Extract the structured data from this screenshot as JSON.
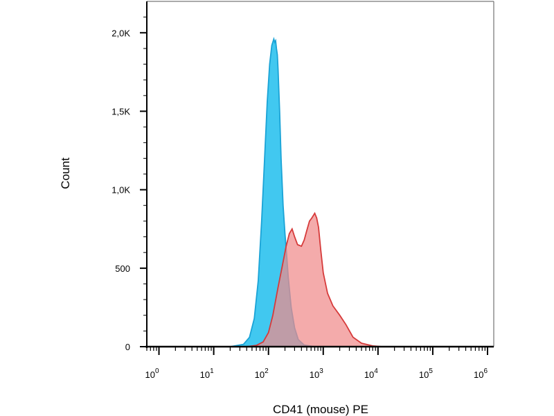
{
  "chart_data": {
    "type": "area",
    "title": "",
    "xlabel": "CD41 (mouse) PE",
    "ylabel": "Count",
    "x_scale": "log",
    "xlim": [
      0.6,
      1300000
    ],
    "ylim": [
      0,
      2200
    ],
    "grid": false,
    "legend": "none",
    "y_ticks": [
      {
        "value": 0,
        "label": "0"
      },
      {
        "value": 500,
        "label": "500"
      },
      {
        "value": 1000,
        "label": "1,0K"
      },
      {
        "value": 1500,
        "label": "1,5K"
      },
      {
        "value": 2000,
        "label": "2,0K"
      }
    ],
    "x_ticks": [
      {
        "value": 1,
        "base": "10",
        "exp": "0"
      },
      {
        "value": 10,
        "base": "10",
        "exp": "1"
      },
      {
        "value": 100,
        "base": "10",
        "exp": "2"
      },
      {
        "value": 1000,
        "base": "10",
        "exp": "3"
      },
      {
        "value": 10000,
        "base": "10",
        "exp": "4"
      },
      {
        "value": 100000,
        "base": "10",
        "exp": "5"
      },
      {
        "value": 1000000,
        "base": "10",
        "exp": "6"
      }
    ],
    "series": [
      {
        "fill": "#41c8f0",
        "stroke": "#1aa3d6",
        "x": [
          1,
          20,
          35,
          45,
          55,
          65,
          75,
          85,
          95,
          105,
          115,
          125,
          130,
          135,
          140,
          145,
          150,
          160,
          170,
          185,
          200,
          215,
          230,
          260,
          300,
          350,
          450,
          700,
          1000000
        ],
        "y": [
          0,
          0,
          15,
          60,
          180,
          420,
          800,
          1200,
          1560,
          1800,
          1920,
          1960,
          1940,
          1950,
          1900,
          1860,
          1760,
          1500,
          1200,
          900,
          720,
          580,
          440,
          250,
          120,
          45,
          10,
          0,
          0
        ]
      },
      {
        "fill": "#f08a8a",
        "stroke": "#d63a3a",
        "x": [
          1,
          40,
          60,
          80,
          100,
          120,
          150,
          180,
          210,
          240,
          270,
          300,
          340,
          400,
          450,
          500,
          560,
          620,
          700,
          760,
          820,
          900,
          1000,
          1200,
          1500,
          2000,
          2600,
          3500,
          5000,
          8000,
          12000,
          1000000
        ],
        "y": [
          0,
          0,
          8,
          30,
          90,
          200,
          380,
          520,
          640,
          720,
          750,
          700,
          650,
          640,
          680,
          740,
          800,
          820,
          850,
          820,
          760,
          620,
          470,
          340,
          260,
          200,
          140,
          60,
          22,
          5,
          0,
          0
        ]
      }
    ]
  }
}
